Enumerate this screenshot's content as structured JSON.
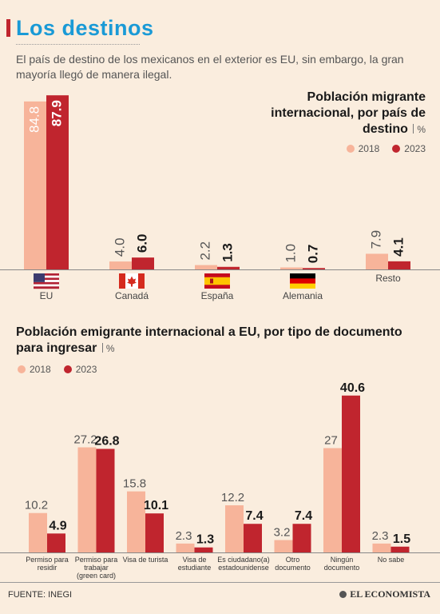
{
  "title": "Los destinos",
  "subtitle": "El país de destino de los mexicanos en el exterior es EU, sin embargo, la gran mayoría llegó de manera ilegal.",
  "colors": {
    "y2018": "#f7b49a",
    "y2023": "#c0252e",
    "title": "#1a9ad6",
    "accent": "#c0252e"
  },
  "chart_data": [
    {
      "type": "bar",
      "title": "Población migrante internacional, por país de destino",
      "unit": "%",
      "categories": [
        "EU",
        "Canadá",
        "España",
        "Alemania",
        "Resto"
      ],
      "icons": [
        "us-flag-icon",
        "canada-flag-icon",
        "spain-flag-icon",
        "germany-flag-icon",
        ""
      ],
      "legend": [
        "2018",
        "2023"
      ],
      "series": [
        {
          "name": "2018",
          "values": [
            84.8,
            4.0,
            2.2,
            1.0,
            7.9
          ]
        },
        {
          "name": "2023",
          "values": [
            87.9,
            6.0,
            1.3,
            0.7,
            4.1
          ]
        }
      ],
      "labels_2018": [
        "84.8",
        "4.0",
        "2.2",
        "1.0",
        "7.9"
      ],
      "labels_2023": [
        "87.9",
        "6.0",
        "1.3",
        "0.7",
        "4.1"
      ],
      "ylim": [
        0,
        90
      ],
      "grid": false,
      "legend_position": "top-right"
    },
    {
      "type": "bar",
      "title": "Población emigrante internacional a EU, por tipo de documento para ingresar",
      "unit": "%",
      "categories": [
        [
          "Permiso para",
          "residir"
        ],
        [
          "Permiso para",
          "trabajar",
          "(green card)"
        ],
        [
          "Visa de turista"
        ],
        [
          "Visa de",
          "estudiante"
        ],
        [
          "Es ciudadano(a)",
          "estadounidense"
        ],
        [
          "Otro",
          "documento"
        ],
        [
          "Ningún",
          "documento"
        ],
        [
          "No sabe"
        ]
      ],
      "legend": [
        "2018",
        "2023"
      ],
      "series": [
        {
          "name": "2018",
          "values": [
            10.2,
            27.2,
            15.8,
            2.3,
            12.2,
            3.2,
            27,
            2.3
          ]
        },
        {
          "name": "2023",
          "values": [
            4.9,
            26.8,
            10.1,
            1.3,
            7.4,
            7.4,
            40.6,
            1.5
          ]
        }
      ],
      "labels_2018": [
        "10.2",
        "27.2",
        "15.8",
        "2.3",
        "12.2",
        "3.2",
        "27",
        "2.3"
      ],
      "labels_2023": [
        "4.9",
        "26.8",
        "10.1",
        "1.3",
        "7.4",
        "7.4",
        "40.6",
        "1.5"
      ],
      "ylim": [
        0,
        42
      ],
      "grid": false,
      "legend_position": "top-left"
    }
  ],
  "source": "FUENTE: INEGI",
  "logo_text": "EL ECONOMISTA"
}
